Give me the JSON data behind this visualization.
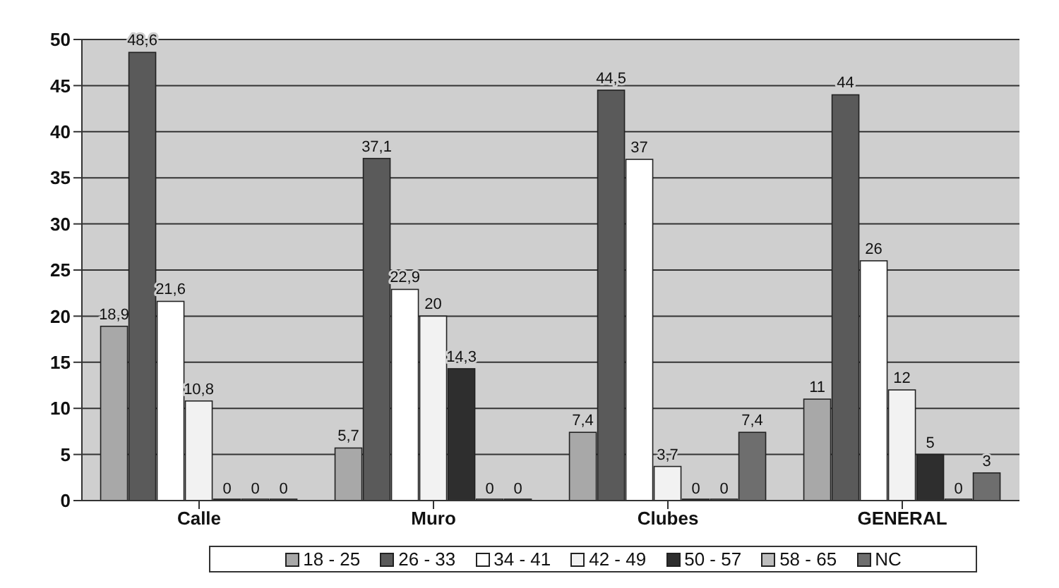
{
  "chart_data": {
    "type": "bar",
    "categories": [
      "Calle",
      "Muro",
      "Clubes",
      "GENERAL"
    ],
    "series": [
      {
        "name": "18 - 25",
        "color": "#a8a8a8",
        "values": [
          18.9,
          5.7,
          7.4,
          11
        ],
        "value_labels": [
          "18,9",
          "5,7",
          "7,4",
          "11"
        ]
      },
      {
        "name": "26 - 33",
        "color": "#5a5a5a",
        "values": [
          48.6,
          37.1,
          44.5,
          44
        ],
        "value_labels": [
          "48,6",
          "37,1",
          "44,5",
          "44"
        ]
      },
      {
        "name": "34 - 41",
        "color": "#ffffff",
        "values": [
          21.6,
          22.9,
          37,
          26
        ],
        "value_labels": [
          "21,6",
          "22,9",
          "37",
          "26"
        ]
      },
      {
        "name": "42 - 49",
        "color": "#f2f2f2",
        "values": [
          10.8,
          20,
          3.7,
          12
        ],
        "value_labels": [
          "10,8",
          "20",
          "3,7",
          "12"
        ]
      },
      {
        "name": "50 - 57",
        "color": "#2e2e2e",
        "values": [
          0,
          14.3,
          0,
          5
        ],
        "value_labels": [
          "0",
          "14,3",
          "0",
          "5"
        ]
      },
      {
        "name": "58 - 65",
        "color": "#bdbdbd",
        "values": [
          0,
          0,
          0,
          0
        ],
        "value_labels": [
          "0",
          "0",
          "0",
          "0"
        ]
      },
      {
        "name": "NC",
        "color": "#6e6e6e",
        "values": [
          0,
          0,
          7.4,
          3
        ],
        "value_labels": [
          "0",
          "0",
          "7,4",
          "3"
        ]
      }
    ],
    "ylim": [
      0,
      50
    ],
    "yticks": [
      0,
      5,
      10,
      15,
      20,
      25,
      30,
      35,
      40,
      45,
      50
    ],
    "grid": "y",
    "legend": "bottom"
  }
}
